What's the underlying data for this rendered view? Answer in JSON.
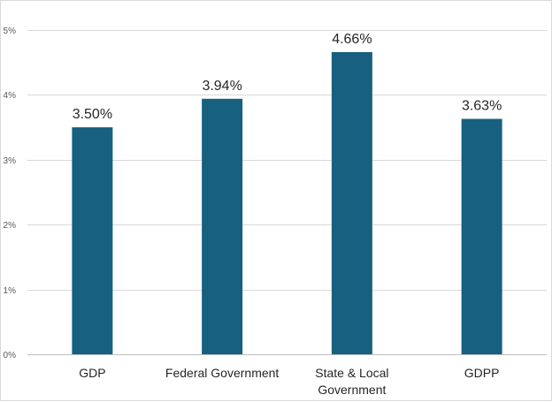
{
  "chart_data": {
    "type": "bar",
    "categories": [
      [
        "GDP"
      ],
      [
        "Federal Government"
      ],
      [
        "State & Local",
        "Government"
      ],
      [
        "GDPP"
      ]
    ],
    "values": [
      3.5,
      3.94,
      4.66,
      3.63
    ],
    "data_labels": [
      "3.50%",
      "3.94%",
      "4.66%",
      "3.63%"
    ],
    "ylim": [
      0,
      5
    ],
    "y_ticks": [
      0,
      1,
      2,
      3,
      4,
      5
    ],
    "y_tick_labels": [
      "0%",
      "1%",
      "2%",
      "3%",
      "4%",
      "5%"
    ],
    "grid": true,
    "legend": "none",
    "bar_color": "#17607f",
    "grid_color": "#d9d9d9",
    "axis_color": "#bfbfbf",
    "title": "",
    "xlabel": "",
    "ylabel": ""
  }
}
